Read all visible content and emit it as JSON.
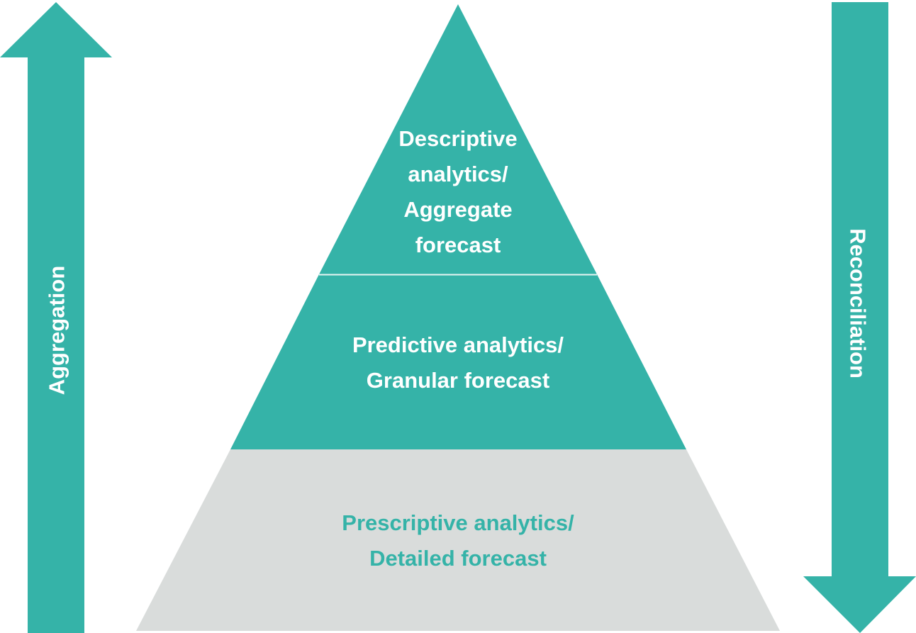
{
  "colors": {
    "teal": "#35b3a8",
    "light_gray": "#d9dcdb",
    "white": "#ffffff",
    "separator": "#e6f4f2"
  },
  "arrows": {
    "left": {
      "label": "Aggregation",
      "direction": "up",
      "icon": "arrow-up-icon"
    },
    "right": {
      "label": "Reconciliation",
      "direction": "down",
      "icon": "arrow-down-icon"
    }
  },
  "pyramid": {
    "tiers": [
      {
        "lines": [
          "Descriptive",
          "analytics/",
          "Aggregate",
          "forecast"
        ]
      },
      {
        "lines": [
          "Predictive analytics/",
          "Granular forecast"
        ]
      },
      {
        "lines": [
          "Prescriptive analytics/",
          "Detailed forecast"
        ]
      }
    ]
  }
}
